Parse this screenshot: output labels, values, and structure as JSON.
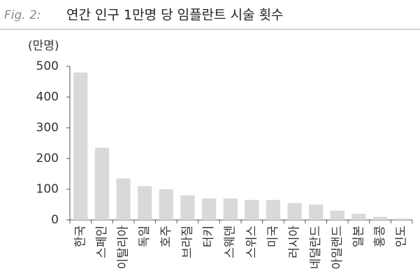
{
  "chart_data": {
    "type": "bar",
    "figure_label": "Fig. 2:",
    "title": "연간 인구 1만명 당 임플란트 시술 횟수",
    "y_label": "(만명)",
    "categories": [
      "한국",
      "스페인",
      "이탈리아",
      "독일",
      "호주",
      "브라질",
      "터키",
      "스웨덴",
      "스위스",
      "미국",
      "러시아",
      "네덜란드",
      "아일랜드",
      "일본",
      "홍콩",
      "인도"
    ],
    "values": [
      480,
      235,
      135,
      110,
      100,
      80,
      70,
      70,
      65,
      65,
      55,
      50,
      30,
      20,
      10,
      5
    ],
    "color": "#d9d9d9",
    "ylim": [
      0,
      500
    ],
    "yticks": [
      0,
      100,
      200,
      300,
      400,
      500
    ],
    "grid": false
  }
}
